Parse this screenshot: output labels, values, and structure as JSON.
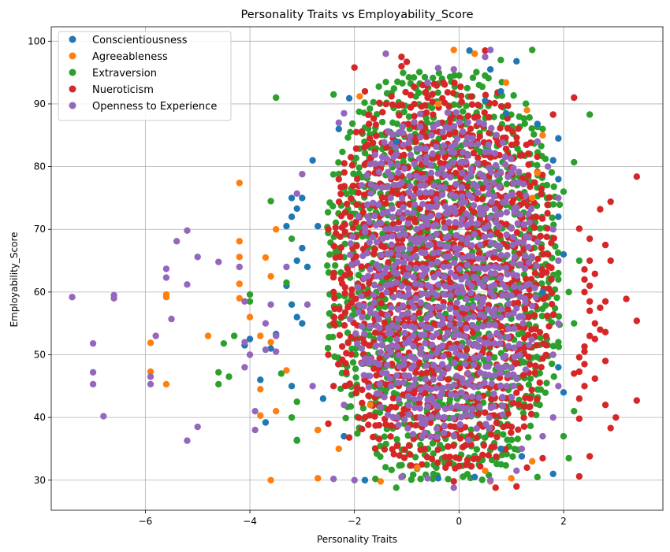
{
  "chart_data": {
    "type": "scatter",
    "title": "Personality Traits vs Employability_Score",
    "xlabel": "Personality Traits",
    "ylabel": "Employability_Score",
    "xlim": [
      -7.8,
      3.9
    ],
    "ylim": [
      25.2,
      102.3
    ],
    "xticks": [
      -6,
      -4,
      -2,
      0,
      2
    ],
    "xtick_labels": [
      "−6",
      "−4",
      "−2",
      "0",
      "2"
    ],
    "yticks": [
      30,
      40,
      50,
      60,
      70,
      80,
      90,
      100
    ],
    "ytick_labels": [
      "30",
      "40",
      "50",
      "60",
      "70",
      "80",
      "90",
      "100"
    ],
    "grid": true,
    "legend_position": "top-left",
    "series": [
      {
        "name": "Conscientiousness",
        "color": "#1f77b4",
        "points": [
          [
            0.2,
            98.5
          ],
          [
            1.1,
            96.8
          ],
          [
            0.6,
            95.5
          ],
          [
            -0.6,
            93.4
          ],
          [
            0.8,
            92
          ],
          [
            0.5,
            90.5
          ],
          [
            -2.1,
            90.9
          ],
          [
            1.5,
            86.8
          ],
          [
            -2.3,
            86
          ],
          [
            0.9,
            88.5
          ],
          [
            1.9,
            84.5
          ],
          [
            -1.2,
            84
          ],
          [
            -2.8,
            81
          ],
          [
            1.8,
            81
          ],
          [
            -3.0,
            75
          ],
          [
            -3.2,
            75
          ],
          [
            -3.1,
            73.3
          ],
          [
            -3.2,
            72
          ],
          [
            -3.3,
            70.5
          ],
          [
            -2.7,
            70.5
          ],
          [
            -3.0,
            67
          ],
          [
            -3.1,
            65
          ],
          [
            -2.9,
            64
          ],
          [
            -3.3,
            61
          ],
          [
            -3.2,
            58
          ],
          [
            -3.1,
            56
          ],
          [
            -3.0,
            55
          ],
          [
            -3.5,
            53.3
          ],
          [
            -4.0,
            52.5
          ],
          [
            -4.1,
            51.5
          ],
          [
            -3.6,
            51
          ],
          [
            -3.8,
            46
          ],
          [
            -3.2,
            45
          ],
          [
            -2.6,
            43
          ],
          [
            -3.7,
            39.2
          ],
          [
            -3.1,
            36.4
          ],
          [
            -2.7,
            38
          ],
          [
            -2.2,
            37
          ],
          [
            -1.8,
            30
          ],
          [
            -0.4,
            30.3
          ],
          [
            0.3,
            30.5
          ],
          [
            1.8,
            31
          ],
          [
            1.2,
            33.8
          ],
          [
            0.8,
            35
          ],
          [
            2.0,
            44
          ],
          [
            1.9,
            48
          ],
          [
            1.6,
            60
          ],
          [
            2.0,
            66
          ],
          [
            1.9,
            72
          ],
          [
            1.9,
            78
          ]
        ]
      },
      {
        "name": "Agreeableness",
        "color": "#ff7f0e",
        "points": [
          [
            -0.1,
            98.6
          ],
          [
            0.3,
            98
          ],
          [
            0.9,
            93.4
          ],
          [
            -1.9,
            91.2
          ],
          [
            -0.4,
            90
          ],
          [
            -4.2,
            77.4
          ],
          [
            -4.2,
            68.1
          ],
          [
            -4.2,
            65.6
          ],
          [
            -4.2,
            61.3
          ],
          [
            -4.2,
            59
          ],
          [
            -3.5,
            70
          ],
          [
            -3.7,
            65.5
          ],
          [
            -3.6,
            62.5
          ],
          [
            -5.6,
            59.6
          ],
          [
            -5.6,
            59.2
          ],
          [
            -4.0,
            56
          ],
          [
            -3.8,
            53
          ],
          [
            -3.6,
            52
          ],
          [
            -5.9,
            51.9
          ],
          [
            -4.8,
            53
          ],
          [
            -5.9,
            47.3
          ],
          [
            -5.6,
            45.3
          ],
          [
            -3.8,
            44.5
          ],
          [
            -3.3,
            47.5
          ],
          [
            -3.8,
            40.3
          ],
          [
            -3.5,
            41
          ],
          [
            -3.6,
            30
          ],
          [
            -2.7,
            30.3
          ],
          [
            -2.7,
            38
          ],
          [
            -2.3,
            35
          ],
          [
            -1.5,
            29.8
          ],
          [
            -0.8,
            32
          ],
          [
            0.6,
            29.8
          ],
          [
            1.0,
            30.3
          ],
          [
            0.5,
            31.5
          ],
          [
            1.4,
            33
          ],
          [
            -1.7,
            42
          ],
          [
            1.3,
            89
          ],
          [
            1.6,
            85
          ],
          [
            1.5,
            79
          ],
          [
            1.4,
            75
          ]
        ]
      },
      {
        "name": "Extraversion",
        "color": "#2ca02c",
        "points": [
          [
            1.4,
            98.6
          ],
          [
            0.8,
            97
          ],
          [
            -3.5,
            91
          ],
          [
            -2.4,
            91.5
          ],
          [
            2.5,
            88.3
          ],
          [
            1.6,
            86
          ],
          [
            2.2,
            80.7
          ],
          [
            2.0,
            76
          ],
          [
            -3.6,
            74.5
          ],
          [
            -3.2,
            68.5
          ],
          [
            -3.3,
            61.5
          ],
          [
            -4.0,
            59.6
          ],
          [
            -4.0,
            58.5
          ],
          [
            -4.3,
            53
          ],
          [
            -4.5,
            51.8
          ],
          [
            -4.4,
            46.5
          ],
          [
            -4.6,
            47.2
          ],
          [
            -4.6,
            45.3
          ],
          [
            -3.4,
            47
          ],
          [
            -3.1,
            42.5
          ],
          [
            -3.2,
            40
          ],
          [
            -3.1,
            36.3
          ],
          [
            -1.6,
            30.2
          ],
          [
            -1.2,
            28.8
          ],
          [
            -0.5,
            30.2
          ],
          [
            1.5,
            30.5
          ],
          [
            2.1,
            33.5
          ],
          [
            2.0,
            37
          ],
          [
            2.2,
            41
          ],
          [
            2.3,
            65
          ],
          [
            2.1,
            60
          ],
          [
            2.2,
            55
          ],
          [
            1.9,
            63
          ],
          [
            1.9,
            52
          ]
        ]
      },
      {
        "name": "Nueroticism",
        "color": "#d62728",
        "points": [
          [
            -1.1,
            97.5
          ],
          [
            -1.0,
            96.7
          ],
          [
            -1.1,
            96
          ],
          [
            -2.0,
            95.8
          ],
          [
            0.5,
            98.5
          ],
          [
            -0.3,
            93.4
          ],
          [
            -0.6,
            91
          ],
          [
            2.2,
            91
          ],
          [
            -1.8,
            92
          ],
          [
            1.8,
            88.3
          ],
          [
            2.7,
            73.2
          ],
          [
            2.9,
            74.4
          ],
          [
            3.4,
            78.4
          ],
          [
            2.3,
            70.1
          ],
          [
            2.5,
            68.5
          ],
          [
            2.8,
            67.5
          ],
          [
            2.5,
            65
          ],
          [
            2.4,
            63.6
          ],
          [
            2.9,
            65
          ],
          [
            2.6,
            62.9
          ],
          [
            2.4,
            62
          ],
          [
            2.5,
            61
          ],
          [
            2.4,
            60
          ],
          [
            2.5,
            58.5
          ],
          [
            2.8,
            58.5
          ],
          [
            2.7,
            57.5
          ],
          [
            2.5,
            57
          ],
          [
            3.2,
            58.9
          ],
          [
            3.4,
            55.4
          ],
          [
            2.6,
            55
          ],
          [
            2.7,
            54
          ],
          [
            2.5,
            53
          ],
          [
            2.6,
            52.5
          ],
          [
            2.4,
            51.3
          ],
          [
            2.4,
            50.5
          ],
          [
            2.3,
            49.6
          ],
          [
            2.4,
            48.5
          ],
          [
            2.3,
            47.3
          ],
          [
            2.2,
            47
          ],
          [
            2.6,
            46.2
          ],
          [
            2.8,
            49
          ],
          [
            2.8,
            53.6
          ],
          [
            2.4,
            45
          ],
          [
            2.3,
            43
          ],
          [
            2.8,
            42
          ],
          [
            3.4,
            42.7
          ],
          [
            2.9,
            38.3
          ],
          [
            3.0,
            40
          ],
          [
            2.3,
            39.8
          ],
          [
            2.5,
            33.8
          ],
          [
            2.3,
            30.6
          ],
          [
            1.6,
            33.5
          ],
          [
            1.3,
            32
          ],
          [
            1.1,
            29
          ],
          [
            0.7,
            28.8
          ],
          [
            -0.1,
            29.8
          ],
          [
            -1.6,
            35
          ],
          [
            -2.1,
            36.8
          ],
          [
            -2.5,
            39
          ],
          [
            -2.4,
            45
          ],
          [
            -2.5,
            50
          ],
          [
            -2.4,
            55
          ],
          [
            -2.4,
            60
          ],
          [
            -2.4,
            63
          ],
          [
            -2.5,
            70
          ],
          [
            -2.3,
            78
          ]
        ]
      },
      {
        "name": "Openness to Experience",
        "color": "#9467bd",
        "points": [
          [
            -7.4,
            59.2
          ],
          [
            -6.6,
            59.5
          ],
          [
            -6.6,
            59
          ],
          [
            -7.0,
            51.8
          ],
          [
            -7.0,
            47.2
          ],
          [
            -7.0,
            45.3
          ],
          [
            -6.8,
            40.2
          ],
          [
            -5.6,
            63.7
          ],
          [
            -5.6,
            62.3
          ],
          [
            -5.4,
            68.1
          ],
          [
            -5.2,
            69.8
          ],
          [
            -5.0,
            65.6
          ],
          [
            -5.2,
            61.2
          ],
          [
            -5.8,
            53
          ],
          [
            -5.5,
            55.7
          ],
          [
            -5.9,
            46.5
          ],
          [
            -5.9,
            45.3
          ],
          [
            -5.0,
            38.5
          ],
          [
            -5.2,
            36.3
          ],
          [
            -4.2,
            64
          ],
          [
            -4.1,
            58.5
          ],
          [
            -4.1,
            52
          ],
          [
            -4.0,
            50
          ],
          [
            -4.1,
            48
          ],
          [
            -3.9,
            41
          ],
          [
            -3.9,
            38
          ],
          [
            -3.5,
            53
          ],
          [
            -3.5,
            50.5
          ],
          [
            -4.6,
            64.8
          ],
          [
            -2.0,
            30
          ],
          [
            -2.4,
            30.2
          ],
          [
            -1.1,
            30.5
          ],
          [
            -0.6,
            30.3
          ],
          [
            -0.1,
            28.8
          ],
          [
            0.6,
            30
          ],
          [
            1.1,
            31.5
          ],
          [
            0.6,
            98.6
          ],
          [
            0.5,
            97.5
          ],
          [
            -1.4,
            98
          ],
          [
            -0.4,
            95.7
          ],
          [
            -0.1,
            95.5
          ],
          [
            -0.6,
            93.4
          ],
          [
            -2.2,
            88.5
          ],
          [
            -2.3,
            87
          ],
          [
            -3.0,
            78.8
          ],
          [
            -3.1,
            75.7
          ],
          [
            -3.3,
            64
          ],
          [
            -2.9,
            58
          ],
          [
            -3.6,
            58
          ],
          [
            -3.7,
            55
          ],
          [
            -3.7,
            50.8
          ],
          [
            -2.8,
            45
          ],
          [
            -2.2,
            42
          ],
          [
            1.2,
            35
          ],
          [
            1.6,
            37
          ],
          [
            1.8,
            40
          ],
          [
            1.9,
            45
          ],
          [
            1.8,
            50
          ],
          [
            1.9,
            55
          ],
          [
            1.9,
            65
          ],
          [
            1.8,
            70
          ],
          [
            1.9,
            75
          ],
          [
            1.7,
            80
          ],
          [
            1.5,
            84
          ]
        ]
      }
    ],
    "dense_region": {
      "x_range": [
        -2.6,
        2.0
      ],
      "y_range": [
        29,
        96
      ],
      "layer_colors": [
        "#2ca02c",
        "#d62728",
        "#9467bd"
      ]
    }
  }
}
